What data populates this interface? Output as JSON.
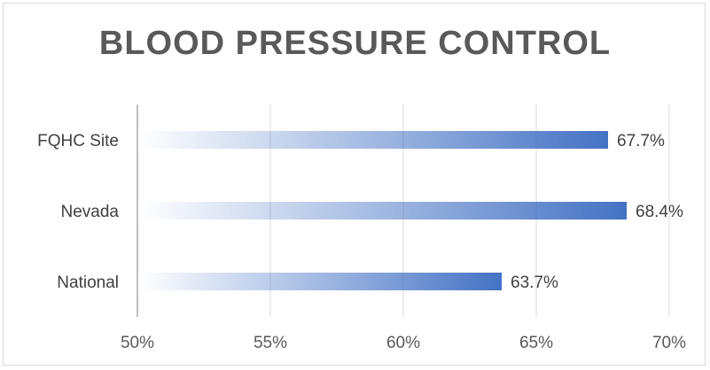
{
  "chart_data": {
    "type": "bar",
    "orientation": "horizontal",
    "title": "BLOOD PRESSURE CONTROL",
    "categories": [
      "FQHC Site",
      "Nevada",
      "National"
    ],
    "values": [
      67.7,
      68.4,
      63.7
    ],
    "value_labels": [
      "67.7%",
      "68.4%",
      "63.7%"
    ],
    "xlim": [
      50,
      70
    ],
    "x_ticks": [
      50,
      55,
      60,
      65,
      70
    ],
    "x_tick_labels": [
      "50%",
      "55%",
      "60%",
      "65%",
      "70%"
    ],
    "grid": true,
    "bar_color": "#4472c4"
  }
}
